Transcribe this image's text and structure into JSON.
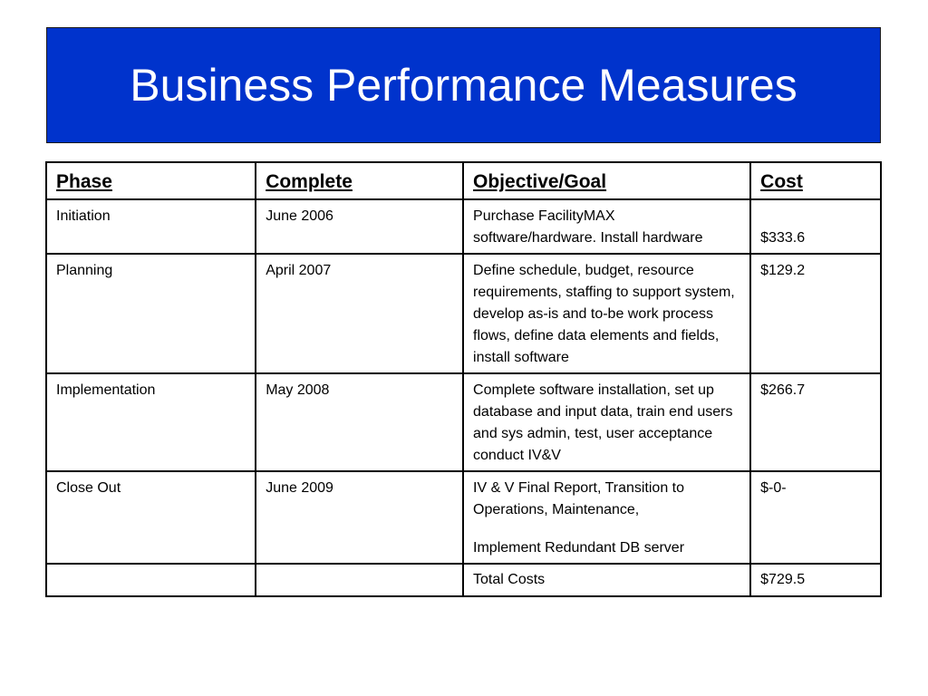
{
  "slide": {
    "title": "Business Performance Measures"
  },
  "table": {
    "headers": {
      "phase": "Phase",
      "complete": "Complete",
      "goal": "Objective/Goal",
      "cost": "Cost"
    },
    "rows": [
      {
        "phase": "Initiation",
        "complete": "June 2006",
        "goal": "Purchase FacilityMAX software/hardware.  Install hardware",
        "cost": "$333.6"
      },
      {
        "phase": "Planning",
        "complete": "April 2007",
        "goal": "Define schedule, budget, resource requirements, staffing to support system, develop as-is and to-be work process flows, define data elements and fields, install software",
        "cost": "$129.2"
      },
      {
        "phase": "Implementation",
        "complete": "May 2008",
        "goal": "Complete software installation, set up database and input data, train end users and sys admin, test, user acceptance conduct IV&V",
        "cost": "$266.7"
      },
      {
        "phase": "Close Out",
        "complete": "June 2009",
        "goal": "IV & V Final Report,  Transition to Operations, Maintenance,",
        "goal_extra": "Implement Redundant DB server",
        "cost": "$-0-"
      }
    ],
    "total": {
      "label": "Total Costs",
      "value": "$729.5"
    }
  },
  "colors": {
    "banner": "#0033cc",
    "title_text": "#ffffff",
    "border": "#000000"
  }
}
